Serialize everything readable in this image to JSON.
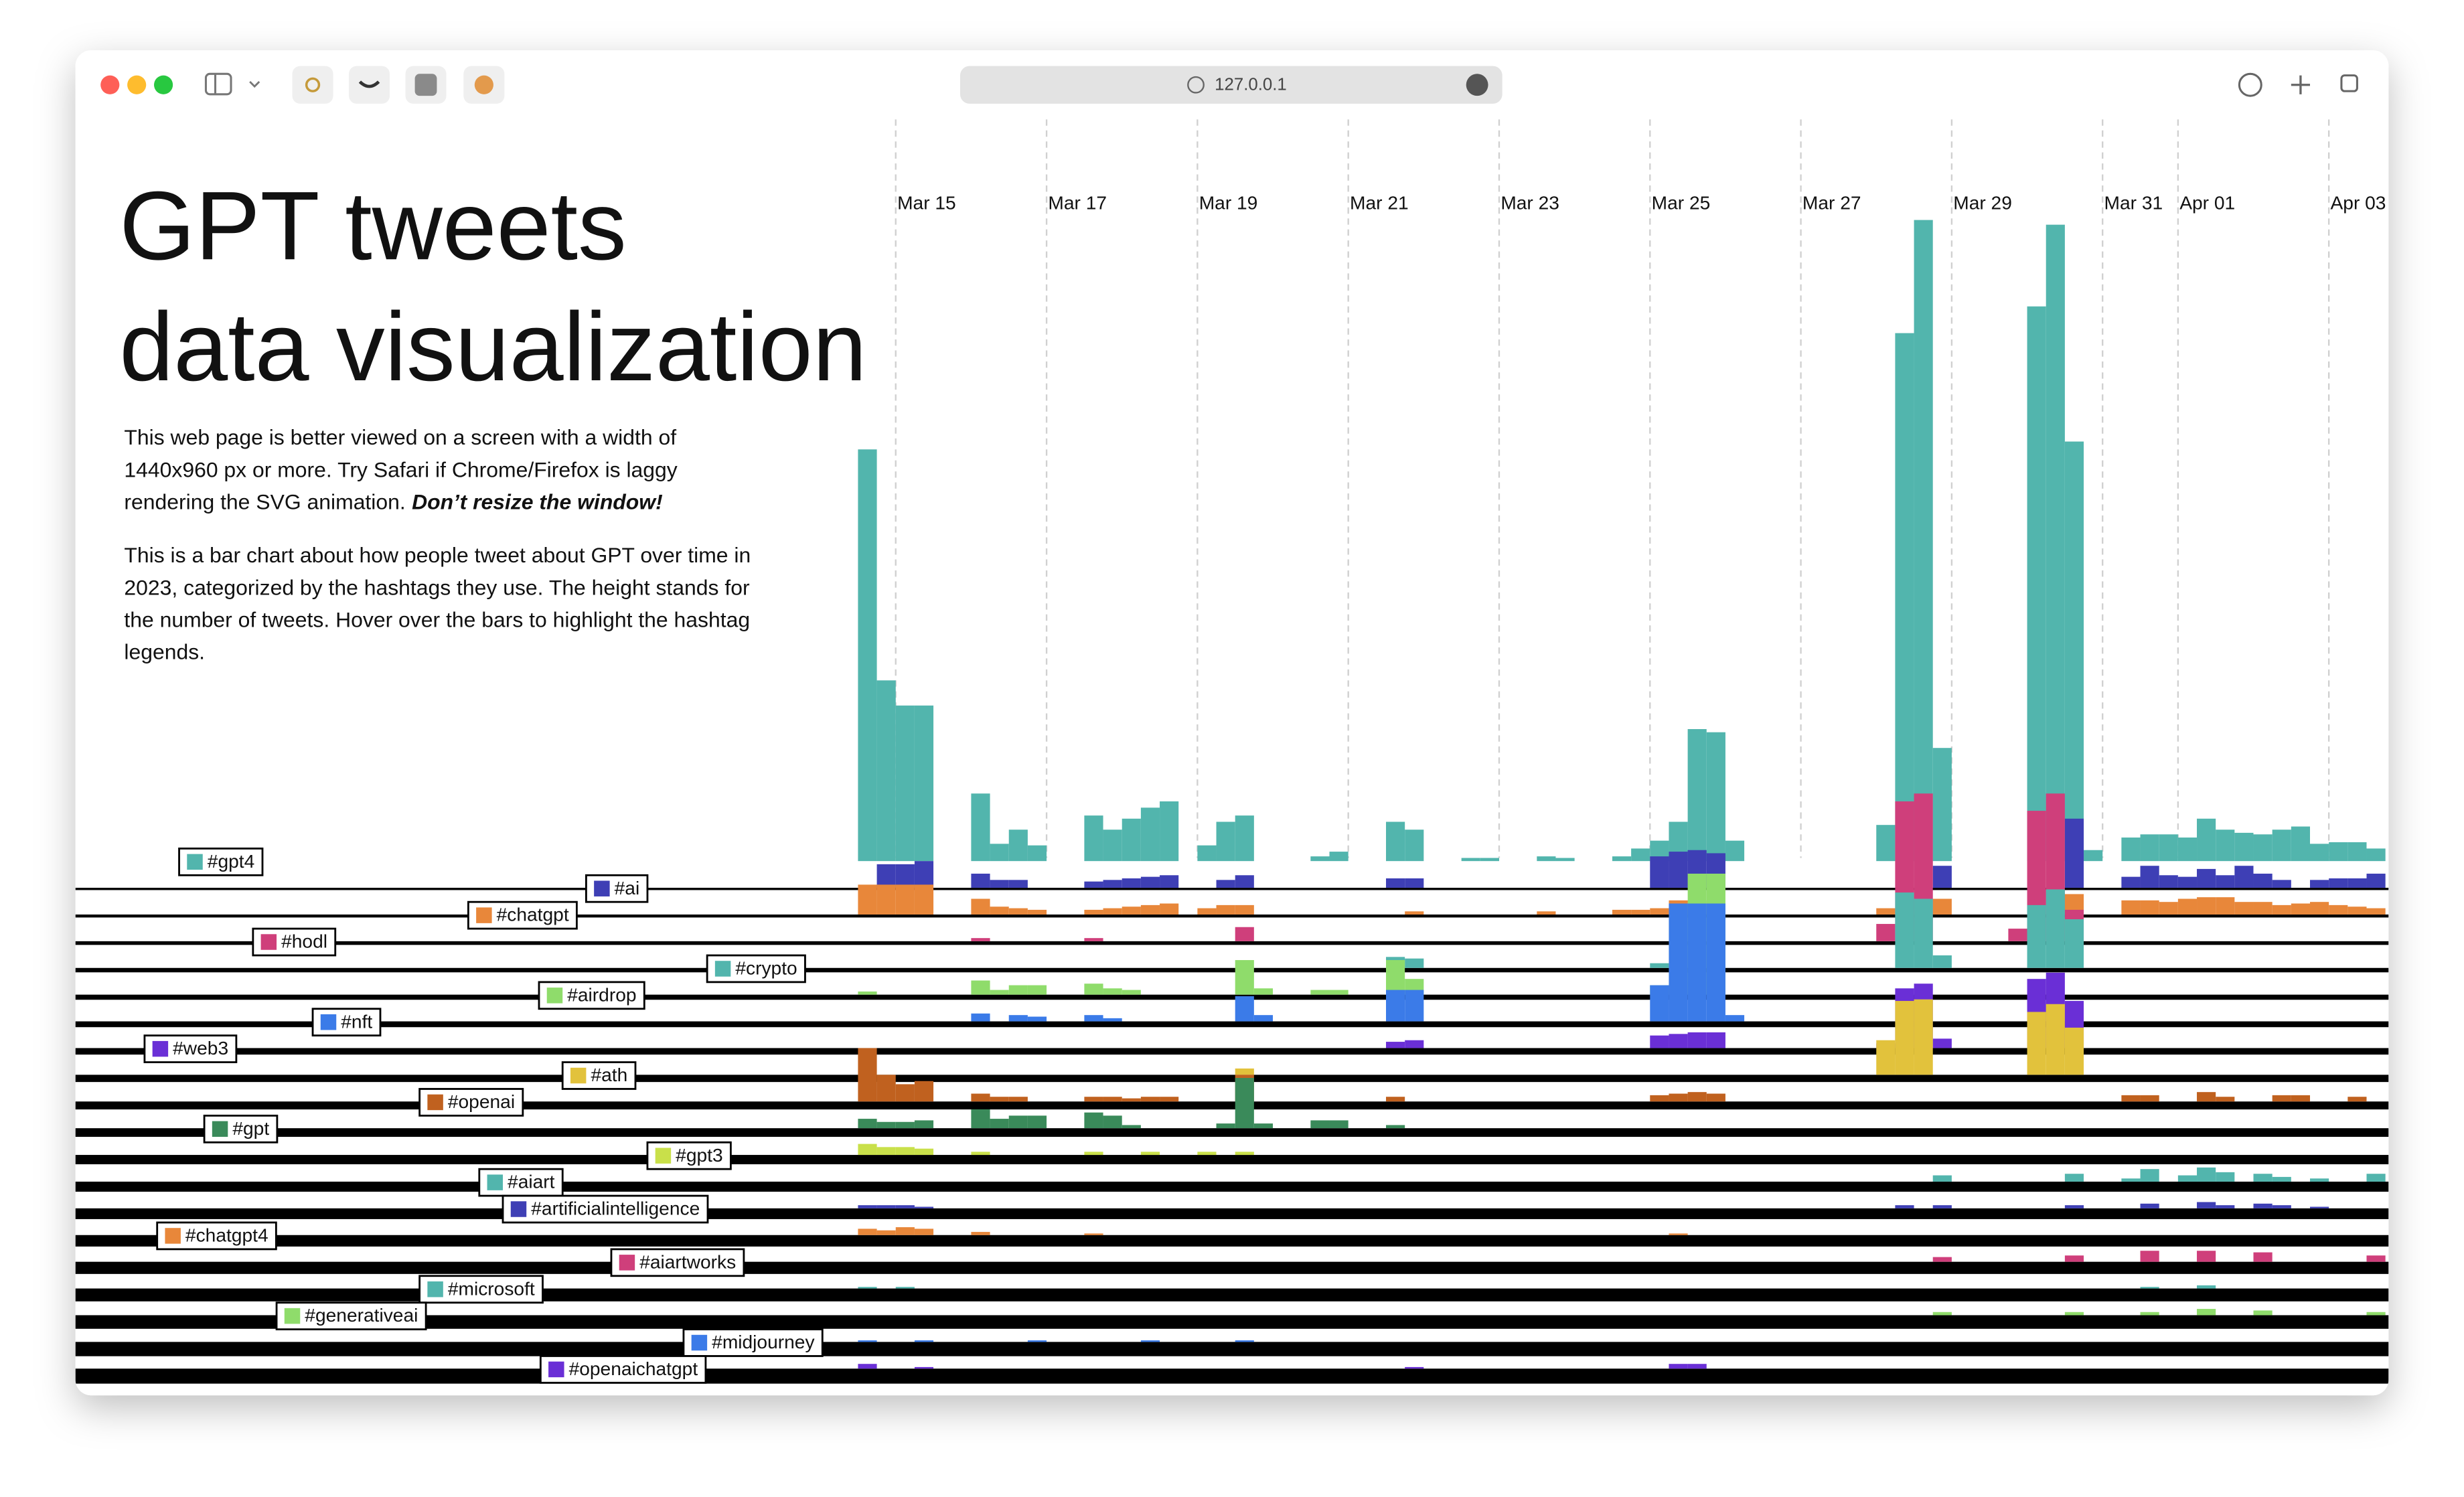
{
  "browser": {
    "url": "127.0.0.1"
  },
  "header": {
    "title_lines": [
      "GPT tweets",
      "data visualization"
    ]
  },
  "intro": {
    "paragraph_1": {
      "lines": [
        "This web page is better viewed on a screen with a width of",
        "1440x960 px or more. Try Safari if Chrome/Firefox is laggy",
        "rendering the SVG animation."
      ],
      "emphasis": "Don’t resize the window!"
    },
    "paragraph_2": {
      "lines": [
        "This is a bar chart about how people tweet about GPT over time in",
        "2023, categorized by the hashtags they use. The height stands for",
        "the number of tweets. Hover over the bars to highlight the hashtag",
        "legends."
      ]
    }
  },
  "chart_data": {
    "type": "bar",
    "grid": true,
    "xlim": [
      -0.5,
      19.8
    ],
    "xticks": [
      {
        "value": 0,
        "label": "Mar 15"
      },
      {
        "value": 2,
        "label": "Mar 17"
      },
      {
        "value": 4,
        "label": "Mar 19"
      },
      {
        "value": 6,
        "label": "Mar 21"
      },
      {
        "value": 8,
        "label": "Mar 23"
      },
      {
        "value": 10,
        "label": "Mar 25"
      },
      {
        "value": 12,
        "label": "Mar 27"
      },
      {
        "value": 14,
        "label": "Mar 29"
      },
      {
        "value": 16,
        "label": "Mar 31"
      },
      {
        "value": 17,
        "label": "Apr 01"
      },
      {
        "value": 19,
        "label": "Apr 03"
      }
    ],
    "series": [
      {
        "name": "#gpt4",
        "color": "#52b5ad",
        "x": [
          -0.5,
          -0.25,
          0,
          0.25,
          1,
          1.25,
          1.5,
          1.75,
          2.5,
          2.75,
          3,
          3.25,
          3.5,
          4,
          4.25,
          4.5,
          5.5,
          5.75,
          6.5,
          6.75,
          7.5,
          7.75,
          8.5,
          8.75,
          9.5,
          9.75,
          10,
          10.25,
          10.5,
          10.75,
          11,
          13,
          13.25,
          13.5,
          13.75,
          15,
          15.25,
          15.5,
          15.75,
          16.25,
          16.5,
          16.75,
          17,
          17.25,
          17.5,
          17.75,
          18,
          18.25,
          18.5,
          18.75,
          19,
          19.25,
          19.5
        ],
        "values": [
          262,
          115,
          99,
          99,
          43,
          11,
          20,
          10,
          29,
          20,
          27,
          34,
          38,
          10,
          25,
          29,
          3,
          6,
          25,
          20,
          2,
          2,
          3,
          2,
          3,
          8,
          13,
          25,
          84,
          82,
          13,
          23,
          336,
          408,
          72,
          353,
          405,
          267,
          7,
          15,
          17,
          17,
          15,
          27,
          20,
          18,
          17,
          20,
          22,
          11,
          12,
          12,
          8
        ]
      },
      {
        "name": "#ai",
        "color": "#3e3fb5",
        "x": [
          -0.25,
          0,
          0.25,
          1,
          1.25,
          1.5,
          2.5,
          2.75,
          3,
          3.25,
          3.5,
          4.25,
          4.5,
          6.5,
          6.75,
          10,
          10.25,
          10.5,
          10.75,
          13.75,
          15.5,
          16.25,
          16.5,
          16.75,
          17,
          17.25,
          17.5,
          17.75,
          18,
          18.25,
          18.75,
          19,
          19.25,
          19.5
        ],
        "values": [
          15,
          15,
          17,
          9,
          5,
          5,
          4,
          5,
          6,
          7,
          8,
          5,
          8,
          6,
          6,
          20,
          23,
          24,
          22,
          14,
          44,
          7,
          14,
          8,
          7,
          12,
          8,
          14,
          9,
          5,
          5,
          6,
          6,
          9
        ]
      },
      {
        "name": "#chatgpt",
        "color": "#e8873a",
        "x": [
          -0.5,
          -0.25,
          0,
          0.25,
          1,
          1.25,
          1.5,
          1.75,
          2.5,
          2.75,
          3,
          3.25,
          3.5,
          4,
          4.25,
          4.5,
          6.75,
          8.5,
          9.5,
          9.75,
          10,
          10.25,
          10.5,
          13,
          13.75,
          15.5,
          16.25,
          16.5,
          16.75,
          17,
          17.25,
          17.5,
          17.75,
          18,
          18.25,
          18.5,
          18.75,
          19,
          19.25,
          19.5
        ],
        "values": [
          19,
          19,
          19,
          19,
          10,
          5,
          4,
          3,
          3,
          4,
          5,
          6,
          7,
          4,
          6,
          6,
          2,
          2,
          3,
          3,
          4,
          9,
          9,
          4,
          10,
          13,
          9,
          9,
          8,
          10,
          11,
          11,
          8,
          8,
          6,
          7,
          8,
          6,
          5,
          4
        ]
      },
      {
        "name": "#hodl",
        "color": "#cf3f7b",
        "x": [
          1,
          2.5,
          4.5,
          13,
          13.25,
          13.5,
          14.75,
          15,
          15.25,
          15.5
        ],
        "values": [
          2,
          2,
          9,
          11,
          89,
          94,
          8,
          83,
          94,
          20
        ]
      },
      {
        "name": "#crypto",
        "color": "#52b5ad",
        "x": [
          6.5,
          6.75,
          10,
          13.25,
          13.5,
          13.75,
          15,
          15.25,
          15.5
        ],
        "values": [
          7,
          6,
          3,
          48,
          44,
          8,
          40,
          50,
          31
        ]
      },
      {
        "name": "#airdrop",
        "color": "#8fdc6b",
        "x": [
          -0.5,
          1,
          1.25,
          1.5,
          1.75,
          2.5,
          2.75,
          3,
          4.5,
          4.75,
          5.5,
          5.75,
          6.5,
          6.75,
          10,
          10.25,
          10.5,
          10.75
        ],
        "values": [
          2,
          9,
          3,
          6,
          6,
          7,
          4,
          3,
          22,
          4,
          3,
          3,
          22,
          10,
          6,
          53,
          77,
          77
        ]
      },
      {
        "name": "#nft",
        "color": "#3b7be8",
        "x": [
          1,
          1.5,
          1.75,
          2.5,
          2.75,
          4.5,
          4.75,
          6.5,
          6.75,
          10,
          10.25,
          10.5,
          10.75,
          11
        ],
        "values": [
          5,
          4,
          3,
          4,
          2,
          16,
          4,
          20,
          20,
          23,
          75,
          75,
          75,
          4
        ]
      },
      {
        "name": "#web3",
        "color": "#6a2fd6",
        "x": [
          6.5,
          6.75,
          10,
          10.25,
          10.5,
          10.75,
          13,
          13.25,
          13.5,
          13.75,
          15,
          15.25,
          15.5
        ],
        "values": [
          4,
          5,
          8,
          9,
          10,
          10,
          3,
          38,
          41,
          6,
          44,
          48,
          30
        ]
      },
      {
        "name": "#ath",
        "color": "#e2c23c",
        "x": [
          4.5,
          13,
          13.25,
          13.5,
          15,
          15.25,
          15.5
        ],
        "values": [
          4,
          22,
          47,
          48,
          40,
          45,
          30
        ]
      },
      {
        "name": "#openai",
        "color": "#c0611f",
        "x": [
          -0.5,
          -0.25,
          0,
          0.25,
          1,
          1.25,
          1.5,
          2.5,
          2.75,
          3,
          3.25,
          3.5,
          4.5,
          6.5,
          10,
          10.25,
          10.5,
          10.75,
          16.25,
          16.5,
          17.25,
          17.5,
          18.25,
          18.5,
          19.25
        ],
        "values": [
          34,
          17,
          11,
          13,
          5,
          3,
          3,
          3,
          3,
          2,
          3,
          3,
          17,
          3,
          4,
          5,
          6,
          5,
          4,
          4,
          6,
          3,
          4,
          4,
          3
        ]
      },
      {
        "name": "#gpt",
        "color": "#3a8a5a",
        "x": [
          -0.5,
          -0.25,
          0,
          0.25,
          1,
          1.25,
          1.5,
          1.75,
          2.5,
          2.75,
          3,
          4.25,
          4.5,
          4.75,
          5.5,
          5.75,
          6.5
        ],
        "values": [
          6,
          4,
          4,
          5,
          12,
          6,
          8,
          8,
          10,
          8,
          2,
          3,
          32,
          3,
          5,
          5,
          2
        ]
      },
      {
        "name": "#gpt3",
        "color": "#c9e04a",
        "x": [
          -0.5,
          -0.25,
          0,
          0.25,
          1,
          2.5,
          3.25,
          4,
          4.5
        ],
        "values": [
          7,
          5,
          5,
          4,
          2,
          2,
          2,
          2,
          2
        ]
      },
      {
        "name": "#aiart",
        "color": "#52b5ad",
        "x": [
          13.75,
          15.5,
          16.25,
          16.5,
          17,
          17.25,
          17.5,
          18,
          18.25,
          18.75,
          19.5
        ],
        "values": [
          4,
          5,
          2,
          8,
          4,
          9,
          6,
          5,
          3,
          2,
          5
        ]
      },
      {
        "name": "#artificialintelligence",
        "color": "#3e3fb5",
        "x": [
          -0.5,
          -0.25,
          0,
          0.25,
          13.25,
          13.75,
          15.5,
          16.5,
          17.25,
          17.5,
          18,
          18.25,
          18.75
        ],
        "values": [
          2,
          2,
          2,
          1,
          2,
          2,
          2,
          3,
          4,
          2,
          3,
          2,
          1
        ]
      },
      {
        "name": "#chatgpt4",
        "color": "#e8873a",
        "x": [
          -0.5,
          -0.25,
          0,
          0.25,
          1,
          2.5,
          10.25
        ],
        "values": [
          4,
          3,
          5,
          4,
          2,
          1,
          1
        ]
      },
      {
        "name": "#aiartworks",
        "color": "#cf3f7b",
        "x": [
          13.75,
          15.5,
          16.5,
          17.25,
          18,
          19.5
        ],
        "values": [
          3,
          4,
          7,
          7,
          6,
          4
        ]
      },
      {
        "name": "#microsoft",
        "color": "#52b5ad",
        "x": [
          -0.5,
          0,
          16.5,
          17.25
        ],
        "values": [
          1,
          1,
          1,
          2
        ]
      },
      {
        "name": "#generativeai",
        "color": "#8fdc6b",
        "x": [
          13.75,
          15.5,
          16.5,
          17.25,
          18,
          19.5
        ],
        "values": [
          2,
          2,
          2,
          4,
          3,
          2
        ]
      },
      {
        "name": "#midjourney",
        "color": "#3b7be8",
        "x": [
          -0.5,
          0.25,
          1.75,
          3.25,
          4.5
        ],
        "values": [
          1,
          1,
          1,
          1,
          1
        ]
      },
      {
        "name": "#openaichatgpt",
        "color": "#6a2fd6",
        "x": [
          -0.5,
          0.25,
          6.75,
          10.25,
          10.5
        ],
        "values": [
          3,
          1,
          1,
          3,
          3
        ]
      }
    ]
  }
}
